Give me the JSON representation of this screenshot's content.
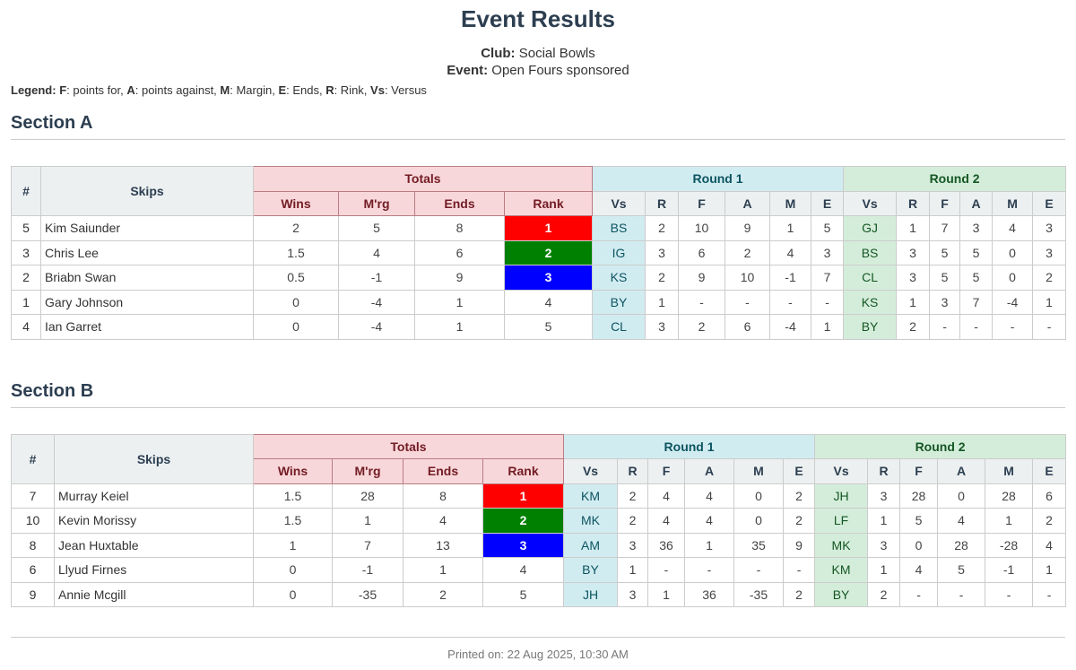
{
  "title": "Event Results",
  "club_label": "Club:",
  "club": "Social Bowls",
  "event_label": "Event:",
  "event": "Open Fours sponsored",
  "legend": {
    "label": "Legend:",
    "items": [
      [
        "F",
        ": points for, "
      ],
      [
        "A",
        ": points against, "
      ],
      [
        "M",
        ": Margin, "
      ],
      [
        "E",
        ": Ends, "
      ],
      [
        "R",
        ": Rink, "
      ],
      [
        "Vs",
        ": Versus"
      ]
    ]
  },
  "headers": {
    "num": "#",
    "skips": "Skips",
    "totals": "Totals",
    "round1": "Round 1",
    "round2": "Round 2",
    "totals_cols": [
      "Wins",
      "M'rg",
      "Ends",
      "Rank"
    ],
    "round_cols": [
      "Vs",
      "R",
      "F",
      "A",
      "M",
      "E"
    ]
  },
  "colors": {
    "rank1": "#ff0000",
    "rank2": "#008000",
    "rank3": "#0000ff"
  },
  "sections": [
    {
      "title": "Section A",
      "rows": [
        {
          "num": "5",
          "skip": "Kim Saiunder",
          "wins": "2",
          "mrg": "5",
          "ends": "8",
          "rank": "1",
          "r1": [
            "BS",
            "2",
            "10",
            "9",
            "1",
            "5"
          ],
          "r2": [
            "GJ",
            "1",
            "7",
            "3",
            "4",
            "3"
          ]
        },
        {
          "num": "3",
          "skip": "Chris Lee",
          "wins": "1.5",
          "mrg": "4",
          "ends": "6",
          "rank": "2",
          "r1": [
            "IG",
            "3",
            "6",
            "2",
            "4",
            "3"
          ],
          "r2": [
            "BS",
            "3",
            "5",
            "5",
            "0",
            "3"
          ]
        },
        {
          "num": "2",
          "skip": "Briabn Swan",
          "wins": "0.5",
          "mrg": "-1",
          "ends": "9",
          "rank": "3",
          "r1": [
            "KS",
            "2",
            "9",
            "10",
            "-1",
            "7"
          ],
          "r2": [
            "CL",
            "3",
            "5",
            "5",
            "0",
            "2"
          ]
        },
        {
          "num": "1",
          "skip": "Gary Johnson",
          "wins": "0",
          "mrg": "-4",
          "ends": "1",
          "rank": "4",
          "r1": [
            "BY",
            "1",
            "-",
            "-",
            "-",
            "-"
          ],
          "r2": [
            "KS",
            "1",
            "3",
            "7",
            "-4",
            "1"
          ]
        },
        {
          "num": "4",
          "skip": "Ian Garret",
          "wins": "0",
          "mrg": "-4",
          "ends": "1",
          "rank": "5",
          "r1": [
            "CL",
            "3",
            "2",
            "6",
            "-4",
            "1"
          ],
          "r2": [
            "BY",
            "2",
            "-",
            "-",
            "-",
            "-"
          ]
        }
      ]
    },
    {
      "title": "Section B",
      "rows": [
        {
          "num": "7",
          "skip": "Murray Keiel",
          "wins": "1.5",
          "mrg": "28",
          "ends": "8",
          "rank": "1",
          "r1": [
            "KM",
            "2",
            "4",
            "4",
            "0",
            "2"
          ],
          "r2": [
            "JH",
            "3",
            "28",
            "0",
            "28",
            "6"
          ]
        },
        {
          "num": "10",
          "skip": "Kevin Morissy",
          "wins": "1.5",
          "mrg": "1",
          "ends": "4",
          "rank": "2",
          "r1": [
            "MK",
            "2",
            "4",
            "4",
            "0",
            "2"
          ],
          "r2": [
            "LF",
            "1",
            "5",
            "4",
            "1",
            "2"
          ]
        },
        {
          "num": "8",
          "skip": "Jean Huxtable",
          "wins": "1",
          "mrg": "7",
          "ends": "13",
          "rank": "3",
          "r1": [
            "AM",
            "3",
            "36",
            "1",
            "35",
            "9"
          ],
          "r2": [
            "MK",
            "3",
            "0",
            "28",
            "-28",
            "4"
          ]
        },
        {
          "num": "6",
          "skip": "Llyud Firnes",
          "wins": "0",
          "mrg": "-1",
          "ends": "1",
          "rank": "4",
          "r1": [
            "BY",
            "1",
            "-",
            "-",
            "-",
            "-"
          ],
          "r2": [
            "KM",
            "1",
            "4",
            "5",
            "-1",
            "1"
          ]
        },
        {
          "num": "9",
          "skip": "Annie Mcgill",
          "wins": "0",
          "mrg": "-35",
          "ends": "2",
          "rank": "5",
          "r1": [
            "JH",
            "3",
            "1",
            "36",
            "-35",
            "2"
          ],
          "r2": [
            "BY",
            "2",
            "-",
            "-",
            "-",
            "-"
          ]
        }
      ]
    }
  ],
  "footer": "Printed on: 22 Aug 2025, 10:30 AM"
}
